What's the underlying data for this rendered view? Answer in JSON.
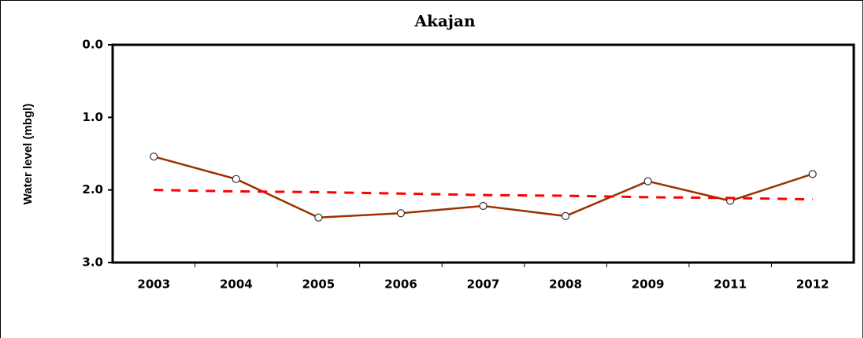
{
  "chart_data": {
    "type": "line",
    "title": "Akajan",
    "y_label": "Water level (mbgl)",
    "categories": [
      "2003",
      "2004",
      "2005",
      "2006",
      "2007",
      "2008",
      "2009",
      "2011",
      "2012"
    ],
    "series": [
      {
        "color": "#993300",
        "style": "solid",
        "markers": true,
        "values": [
          1.54,
          1.85,
          2.38,
          2.32,
          2.22,
          2.36,
          1.88,
          2.15,
          1.78
        ]
      },
      {
        "color": "#ff0000",
        "style": "dashed",
        "markers": false,
        "values": [
          2.0,
          2.02,
          2.03,
          2.05,
          2.07,
          2.08,
          2.1,
          2.11,
          2.13
        ]
      }
    ],
    "ylim": [
      0,
      3
    ],
    "y_inverted": true,
    "yticks": [
      {
        "value": 0,
        "label": "0.0"
      },
      {
        "value": 1,
        "label": "1.0"
      },
      {
        "value": 2,
        "label": "2.0"
      },
      {
        "value": 3,
        "label": "3.0"
      }
    ],
    "grid": false
  }
}
